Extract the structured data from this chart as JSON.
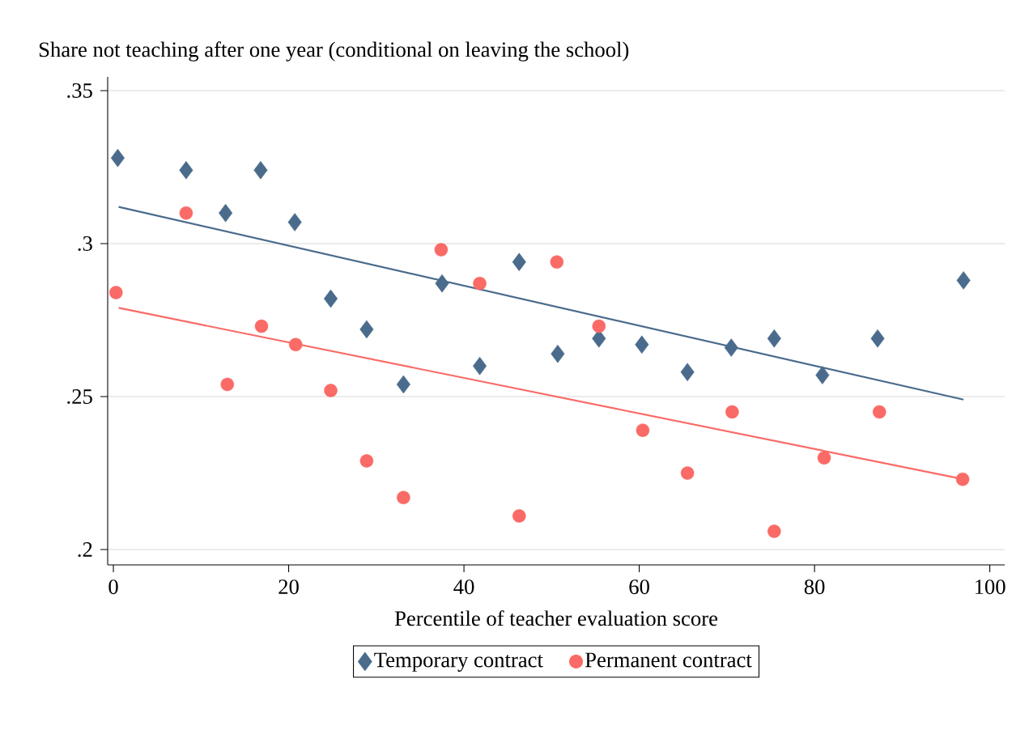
{
  "chart_data": {
    "type": "scatter",
    "ylabel": "Share not teaching after one year (conditional on leaving the school)",
    "xlabel": "Percentile of teacher evaluation score",
    "xlim": [
      -0.65,
      101.7
    ],
    "ylim": [
      0.195,
      0.3545
    ],
    "xticks": [
      0,
      20,
      40,
      60,
      80,
      100
    ],
    "yticks": [
      {
        "value": 0.2,
        "label": ".2"
      },
      {
        "value": 0.25,
        "label": ".25"
      },
      {
        "value": 0.3,
        "label": ".3"
      },
      {
        "value": 0.35,
        "label": ".35"
      }
    ],
    "grid": "y",
    "legend": "bottom",
    "series": [
      {
        "name": "Temporary contract",
        "color": "#4a6b8c",
        "marker": "diamond",
        "x": [
          0.5,
          8.3,
          12.8,
          16.8,
          20.7,
          24.8,
          28.9,
          33.1,
          37.5,
          41.8,
          46.3,
          50.7,
          55.4,
          60.3,
          65.5,
          70.5,
          75.4,
          80.9,
          87.2,
          97.0
        ],
        "values": [
          0.328,
          0.324,
          0.31,
          0.324,
          0.307,
          0.282,
          0.272,
          0.254,
          0.287,
          0.26,
          0.294,
          0.264,
          0.269,
          0.267,
          0.258,
          0.266,
          0.269,
          0.257,
          0.269,
          0.288
        ]
      },
      {
        "name": "Permanent contract",
        "color": "#fa6a66",
        "marker": "circle",
        "x": [
          0.3,
          8.3,
          13.0,
          16.9,
          20.8,
          24.8,
          28.9,
          33.1,
          37.4,
          41.8,
          46.3,
          50.6,
          55.4,
          60.4,
          65.5,
          70.6,
          75.4,
          81.1,
          87.4,
          96.9
        ],
        "values": [
          0.284,
          0.31,
          0.254,
          0.273,
          0.267,
          0.252,
          0.229,
          0.217,
          0.298,
          0.287,
          0.211,
          0.294,
          0.273,
          0.239,
          0.225,
          0.245,
          0.206,
          0.23,
          0.245,
          0.223
        ]
      },
      {
        "type": "line",
        "color": "#4a6b8c",
        "x": [
          0.6,
          97.0
        ],
        "values": [
          0.312,
          0.249
        ]
      },
      {
        "type": "line",
        "color": "#fa6a66",
        "x": [
          0.6,
          97.0
        ],
        "values": [
          0.279,
          0.223
        ]
      }
    ]
  }
}
